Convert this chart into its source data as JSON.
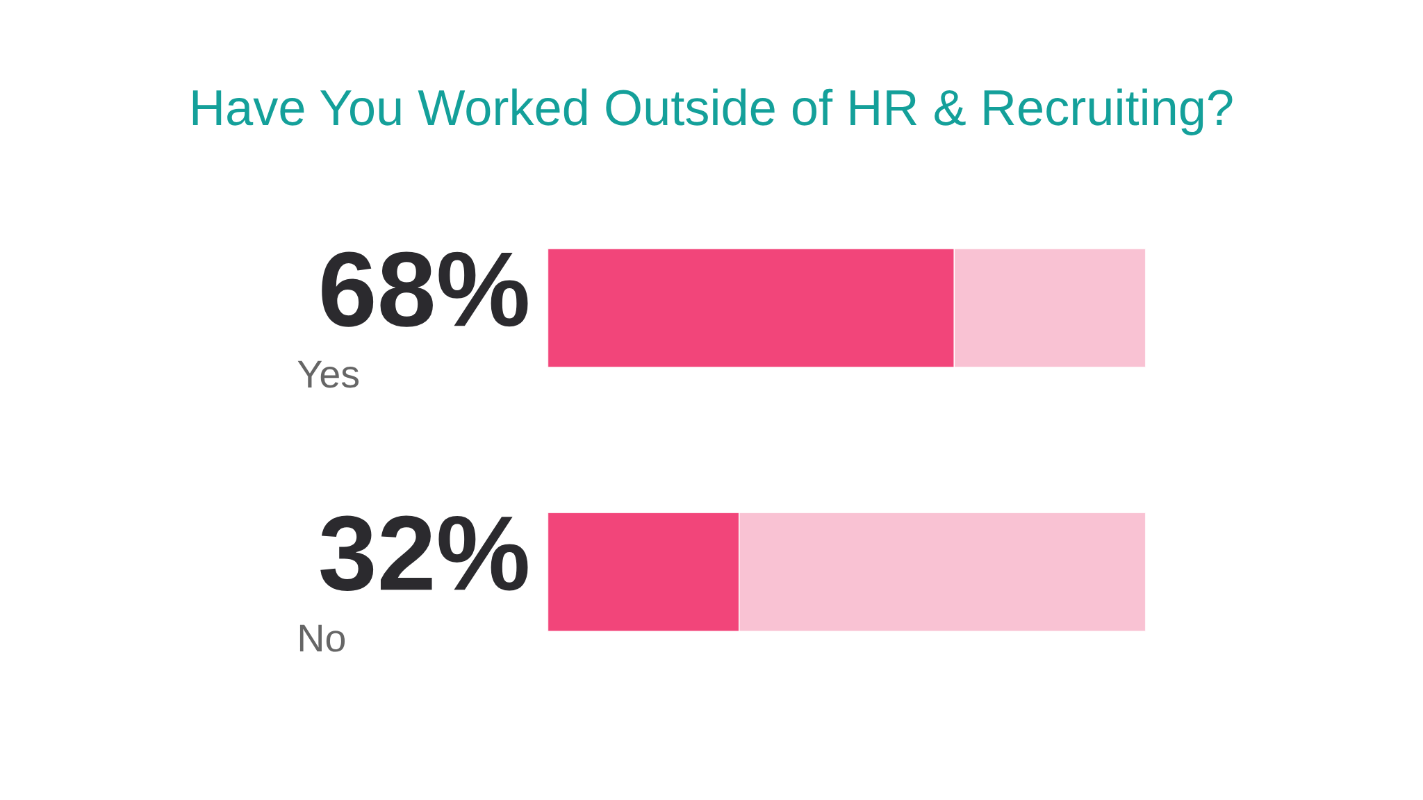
{
  "chart_data": {
    "type": "bar",
    "orientation": "horizontal",
    "stacked": true,
    "title": "Have You Worked Outside of HR & Recruiting?",
    "categories": [
      "Yes",
      "No"
    ],
    "series": [
      {
        "color": "#f2457a",
        "values": [
          68,
          32
        ],
        "value_labels": [
          "68%",
          "32%"
        ]
      },
      {
        "color": "#f9c2d3",
        "values": [
          32,
          68
        ]
      }
    ],
    "tick_labels": false,
    "grid": false,
    "legend": false
  }
}
